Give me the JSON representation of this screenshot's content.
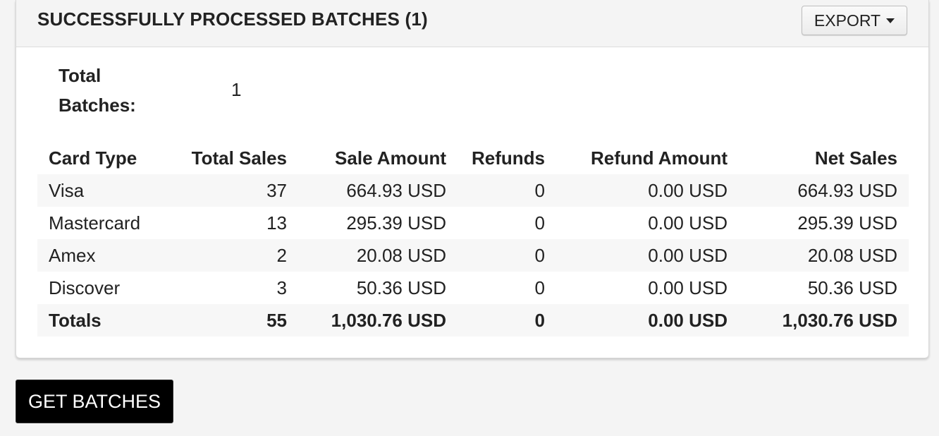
{
  "panel": {
    "title": "SUCCESSFULLY PROCESSED BATCHES (1)",
    "export_label": "EXPORT",
    "export_icon": "caret-down-icon"
  },
  "summary": {
    "total_batches_label": "Total Batches:",
    "total_batches_value": "1"
  },
  "table": {
    "columns": [
      "Card Type",
      "Total Sales",
      "Sale Amount",
      "Refunds",
      "Refund Amount",
      "Net Sales"
    ],
    "rows": [
      [
        "Visa",
        "37",
        "664.93 USD",
        "0",
        "0.00 USD",
        "664.93 USD"
      ],
      [
        "Mastercard",
        "13",
        "295.39 USD",
        "0",
        "0.00 USD",
        "295.39 USD"
      ],
      [
        "Amex",
        "2",
        "20.08 USD",
        "0",
        "0.00 USD",
        "20.08 USD"
      ],
      [
        "Discover",
        "3",
        "50.36 USD",
        "0",
        "0.00 USD",
        "50.36 USD"
      ]
    ],
    "totals": [
      "Totals",
      "55",
      "1,030.76 USD",
      "0",
      "0.00 USD",
      "1,030.76 USD"
    ]
  },
  "actions": {
    "get_batches_label": "GET BATCHES"
  },
  "colors": {
    "page_background": "#f4f4f4",
    "panel_background": "#ffffff",
    "stripe": "#f7f7f7",
    "primary_button": "#000000"
  }
}
